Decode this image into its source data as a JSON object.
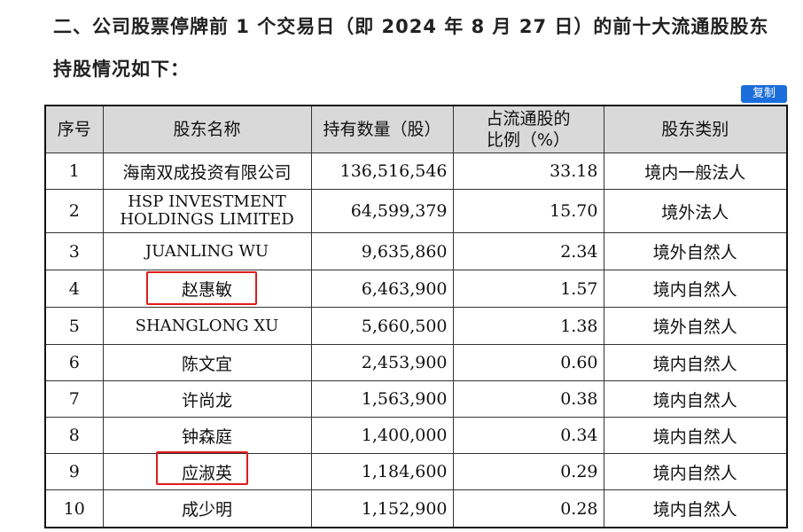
{
  "heading": {
    "line1": "二、公司股票停牌前 1 个交易日（即 2024 年 8 月 27 日）的前十大流通股股东",
    "line2": "持股情况如下："
  },
  "copy_button": "复制",
  "table": {
    "headers": [
      "序号",
      "股东名称",
      "持有数量（股）",
      "占流通股的比例（%）",
      "股东类别"
    ],
    "rows": [
      [
        "1",
        "海南双成投资有限公司",
        "136,516,546",
        "33.18",
        "境内一般法人"
      ],
      [
        "2",
        "HSP INVESTMENT HOLDINGS LIMITED",
        "64,599,379",
        "15.70",
        "境外法人"
      ],
      [
        "3",
        "JUANLING WU",
        "9,635,860",
        "2.34",
        "境外自然人"
      ],
      [
        "4",
        "赵惠敏",
        "6,463,900",
        "1.57",
        "境内自然人"
      ],
      [
        "5",
        "SHANGLONG XU",
        "5,660,500",
        "1.38",
        "境外自然人"
      ],
      [
        "6",
        "陈文宜",
        "2,453,900",
        "0.60",
        "境内自然人"
      ],
      [
        "7",
        "许尚龙",
        "1,563,900",
        "0.38",
        "境内自然人"
      ],
      [
        "8",
        "钟森庭",
        "1,400,000",
        "0.34",
        "境内自然人"
      ],
      [
        "9",
        "应淑英",
        "1,184,600",
        "0.29",
        "境内自然人"
      ],
      [
        "10",
        "成少明",
        "1,152,900",
        "0.28",
        "境内自然人"
      ]
    ]
  },
  "highlight_color": "#e01b1b"
}
